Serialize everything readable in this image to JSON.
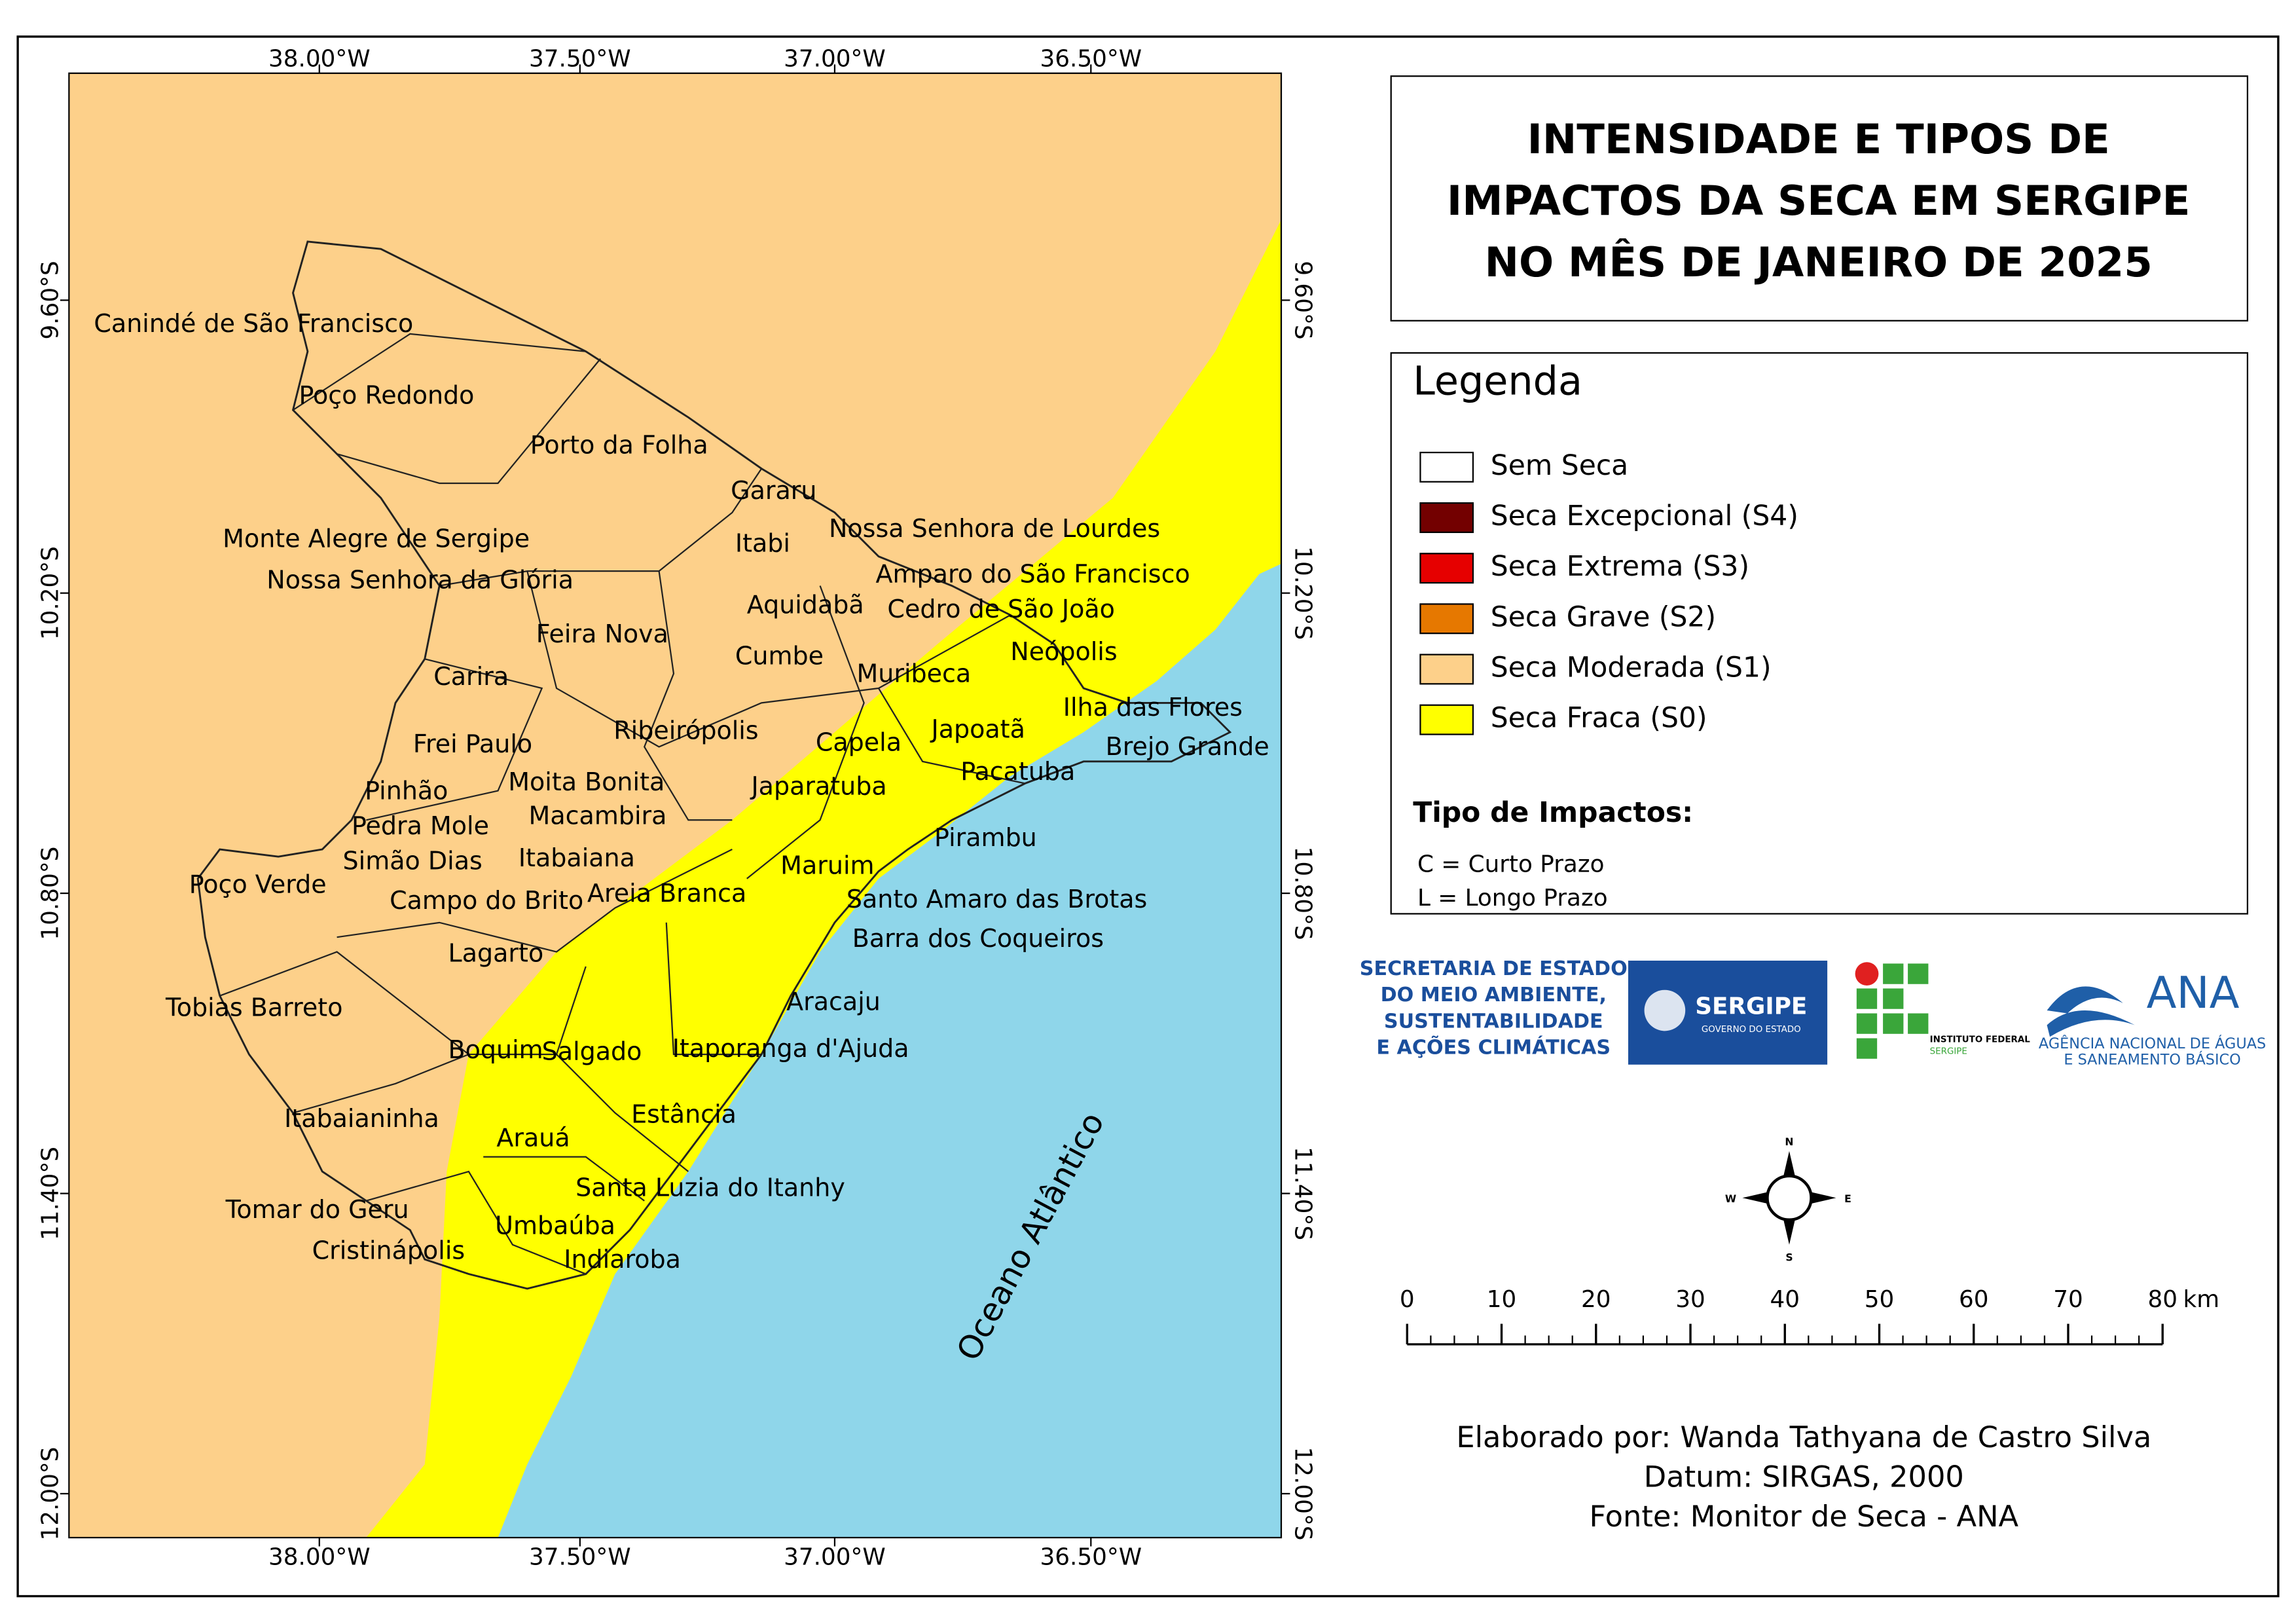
{
  "title": [
    "INTENSIDADE E TIPOS DE",
    "IMPACTOS DA SECA EM SERGIPE",
    "NO MÊS DE JANEIRO DE 2025"
  ],
  "legend": {
    "title": "Legenda",
    "items": [
      {
        "label": "Sem Seca",
        "color": "#ffffff"
      },
      {
        "label": "Seca Excepcional (S4)",
        "color": "#730000"
      },
      {
        "label": "Seca Extrema (S3)",
        "color": "#e60000"
      },
      {
        "label": "Seca Grave (S2)",
        "color": "#e67800"
      },
      {
        "label": "Seca Moderada (S1)",
        "color": "#fdd08a"
      },
      {
        "label": "Seca Fraca (S0)",
        "color": "#ffff00"
      }
    ]
  },
  "impact_types": {
    "title": "Tipo de Impactos:",
    "items": [
      "C = Curto Prazo",
      "L = Longo Prazo"
    ]
  },
  "map": {
    "longitude_labels": [
      "38.00°W",
      "37.50°W",
      "37.00°W",
      "36.50°W"
    ],
    "latitude_labels": [
      "9.60°S",
      "10.20°S",
      "10.80°S",
      "11.40°S",
      "12.00°S"
    ],
    "ocean_label": "Oceano Atlântico",
    "municipalities": [
      "Canindé de São Francisco",
      "Poço Redondo",
      "Porto da Folha",
      "Gararu",
      "Nossa Senhora de Lourdes",
      "Itabi",
      "Monte Alegre de Sergipe",
      "Amparo do São Francisco",
      "Nossa Senhora da Glória",
      "Aquidabã",
      "Cedro de São João",
      "Feira Nova",
      "Neópolis",
      "Cumbe",
      "Muribeca",
      "Carira",
      "Ilha das Flores",
      "Japoatã",
      "Ribeirópolis",
      "Capela",
      "Frei Paulo",
      "Brejo Grande",
      "Pacatuba",
      "Moita Bonita",
      "Pinhão",
      "Japaratuba",
      "Macambira",
      "Pedra Mole",
      "Pirambu",
      "Simão Dias",
      "Itabaiana",
      "Maruim",
      "Poço Verde",
      "Areia Branca",
      "Santo Amaro das Brotas",
      "Campo do Brito",
      "Barra dos Coqueiros",
      "Lagarto",
      "Aracaju",
      "Tobias Barreto",
      "Boquim",
      "Salgado",
      "Itaporanga d'Ajuda",
      "Estância",
      "Itabaianinha",
      "Arauá",
      "Santa Luzia do Itanhy",
      "Tomar do Geru",
      "Umbaúba",
      "Cristinápolis",
      "Indiaroba"
    ]
  },
  "compass": [
    "N",
    "E",
    "S",
    "W"
  ],
  "scale_bar": {
    "ticks": [
      0,
      10,
      20,
      30,
      40,
      50,
      60,
      70,
      80
    ],
    "unit": "km"
  },
  "credits": [
    "Elaborado por: Wanda Tathyana de Castro Silva",
    "Datum: SIRGAS, 2000",
    "Fonte: Monitor de Seca - ANA"
  ],
  "logos": {
    "semac": [
      "SECRETARIA DE ESTADO",
      "DO MEIO AMBIENTE,",
      "SUSTENTABILIDADE",
      "E AÇÕES CLIMÁTICAS"
    ],
    "sergipe": [
      "SERGIPE",
      "GOVERNO DO ESTADO"
    ],
    "ifs": [
      "INSTITUTO FEDERAL",
      "SERGIPE"
    ],
    "ana": [
      "ANA",
      "AGÊNCIA NACIONAL DE ÁGUAS",
      "E SANEAMENTO BÁSICO"
    ]
  }
}
